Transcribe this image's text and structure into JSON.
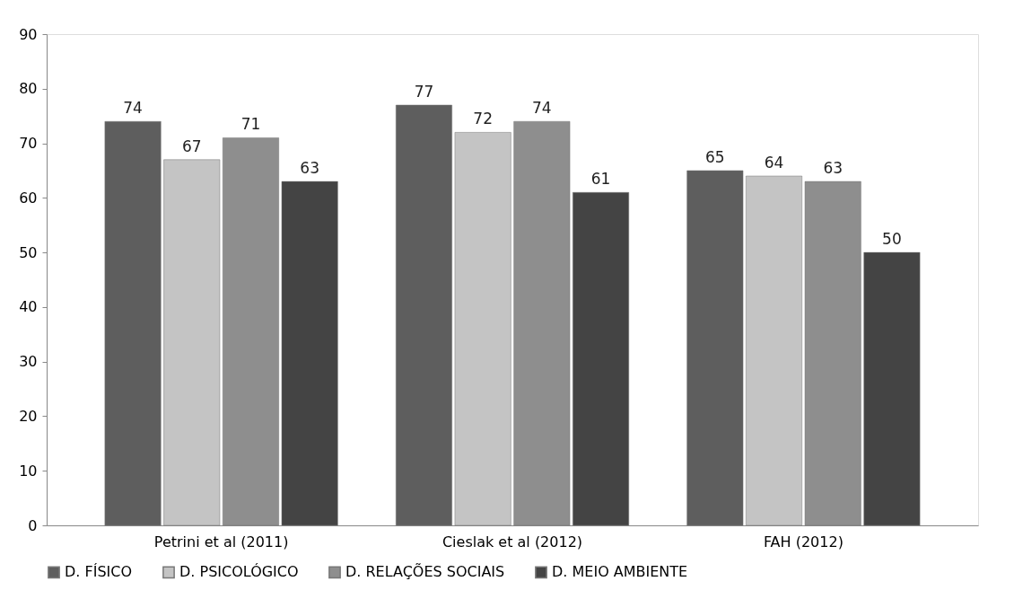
{
  "chart_data": {
    "type": "bar",
    "categories": [
      "Petrini et al (2011)",
      "Cieslak et al (2012)",
      "FAH (2012)"
    ],
    "series": [
      {
        "name": "D. FÍSICO",
        "color": "#5e5e5e",
        "values": [
          74,
          77,
          65
        ]
      },
      {
        "name": "D. PSICOLÓGICO",
        "color": "#c4c4c4",
        "values": [
          67,
          72,
          64
        ]
      },
      {
        "name": "D. RELAÇÕES SOCIAIS",
        "color": "#8e8e8e",
        "values": [
          71,
          74,
          63
        ]
      },
      {
        "name": "D. MEIO AMBIENTE",
        "color": "#444444",
        "values": [
          63,
          61,
          50
        ]
      }
    ],
    "ylim": [
      0,
      90
    ],
    "yticks": [
      0,
      10,
      20,
      30,
      40,
      50,
      60,
      70,
      80,
      90
    ],
    "grid": false,
    "legend": "bottom",
    "data_labels": true
  }
}
